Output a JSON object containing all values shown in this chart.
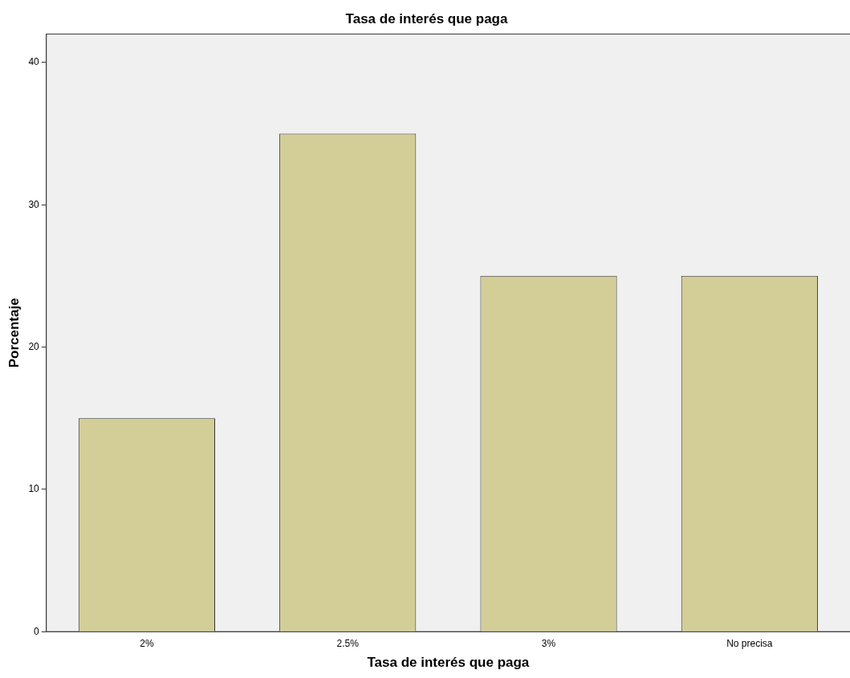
{
  "chart_data": {
    "type": "bar",
    "title": "Tasa de interés que paga",
    "xlabel": "Tasa de interés que paga",
    "ylabel": "Porcentaje",
    "categories": [
      "2%",
      "2.5%",
      "3%",
      "No precisa"
    ],
    "values": [
      15,
      35,
      25,
      25
    ],
    "color": "#d3ce98",
    "ylim": [
      0,
      42
    ],
    "yticks": [
      0,
      10,
      20,
      30,
      40
    ],
    "grid": false,
    "legend": false
  }
}
